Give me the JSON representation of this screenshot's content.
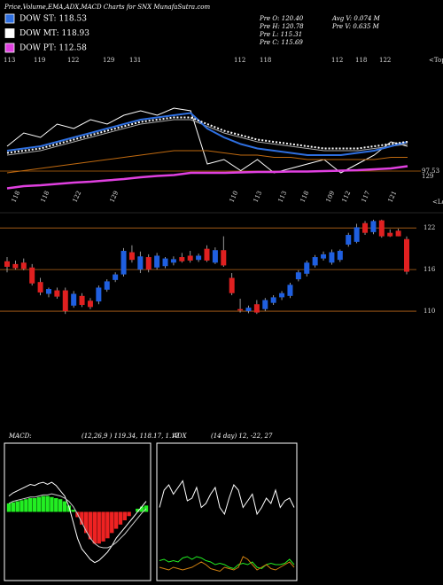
{
  "header": {
    "stats": [
      "Pre  O: 120.40",
      "Pre  H: 120.78",
      "Pre  L: 115.31",
      "Pre  C: 115.69",
      "Avg V: 0.074  M",
      "Pre  V: 0.635  M"
    ]
  },
  "chart_data": [
    {
      "type": "line",
      "title": "Price,Volume,EMA,ADX,MACD Charts for SNX  MunafaSutra.com",
      "top_labels": [
        "113",
        "119",
        "122",
        "129",
        "131",
        "112",
        "118",
        "112",
        "118",
        "122",
        "<Tops"
      ],
      "low_labels": [
        "118",
        "118",
        "122",
        "129",
        "110",
        "113",
        "113",
        "118",
        "109",
        "112",
        "117",
        "121",
        "<Lows"
      ],
      "annotations": [
        "97.53",
        "129"
      ],
      "ylim": [
        104,
        127
      ],
      "series": [
        {
          "color": "#ffffff",
          "values": [
            114,
            117,
            116,
            119,
            118,
            120,
            119,
            121,
            122,
            121,
            122.6,
            122,
            110,
            111,
            108.5,
            111,
            108,
            109,
            110,
            111,
            108,
            110,
            112,
            115,
            114
          ]
        },
        {
          "color": "#aaaaaa",
          "values": [
            112,
            112.5,
            113,
            114,
            115,
            116,
            117,
            118,
            119,
            119.5,
            120,
            120,
            118.5,
            117,
            116,
            115,
            114.5,
            114,
            113.5,
            113,
            113,
            113,
            113.5,
            114,
            114.5
          ]
        },
        {
          "color": "#c06a10",
          "values": [
            108,
            108.5,
            109,
            109.5,
            110,
            110.5,
            111,
            111.5,
            112,
            112.5,
            113,
            113,
            113,
            112.5,
            112,
            112,
            111.5,
            111.5,
            111,
            111,
            111,
            111,
            111,
            111.5,
            111.5
          ]
        },
        {
          "name": "DOW ST: 118.53",
          "color": "#2e6fe0",
          "values": [
            113,
            113.5,
            114,
            115,
            116,
            117,
            118,
            119,
            120,
            120.5,
            121,
            121.5,
            118,
            116,
            114.5,
            113.5,
            113,
            112.5,
            112,
            112,
            112,
            112.5,
            113,
            114,
            115
          ]
        },
        {
          "name": "DOW MT: 118.93",
          "color": "#ffffff",
          "values": [
            112.5,
            113,
            113.5,
            114.5,
            115.5,
            116.5,
            117.5,
            118.5,
            119.5,
            120,
            120.5,
            120.5,
            119,
            117.5,
            116.5,
            115.5,
            115,
            114.5,
            114,
            113.5,
            113.5,
            113.5,
            114,
            114.5,
            115
          ]
        },
        {
          "name": "DOW PT: 112.58",
          "color": "#e040e0",
          "values": [
            104.5,
            105,
            105.2,
            105.5,
            105.8,
            106,
            106.3,
            106.6,
            107,
            107.3,
            107.5,
            108,
            108,
            108,
            108.1,
            108.2,
            108.2,
            108.3,
            108.3,
            108.4,
            108.5,
            108.6,
            108.8,
            109,
            109.5
          ]
        }
      ]
    },
    {
      "type": "candlestick",
      "up_color": "#1f5fe0",
      "down_color": "#e02020",
      "grid": true,
      "grid_color": "#b8661a",
      "ylim": [
        108.6,
        124.2
      ],
      "yticks": [
        110,
        116,
        122
      ],
      "open": [
        117.2,
        116.8,
        117.0,
        116.3,
        114.2,
        112.5,
        113.0,
        113.0,
        110.8,
        112.2,
        111.5,
        111.4,
        113.1,
        114.5,
        115.3,
        118.5,
        116.0,
        117.8,
        116.3,
        116.5,
        117.0,
        117.8,
        118.0,
        117.4,
        119.0,
        117.0,
        118.8,
        114.8,
        110.3,
        110.0,
        111.0,
        110.3,
        111.2,
        112.0,
        112.2,
        114.6,
        115.4,
        116.6,
        117.6,
        117.0,
        117.4,
        119.6,
        120.0,
        122.7,
        121.4,
        123.1,
        121.3,
        121.6,
        120.4
      ],
      "high": [
        117.8,
        117.3,
        117.6,
        116.8,
        114.8,
        113.4,
        113.4,
        113.4,
        112.9,
        112.6,
        111.9,
        113.7,
        114.6,
        115.6,
        119.1,
        119.5,
        118.6,
        118.2,
        118.4,
        117.8,
        117.9,
        118.4,
        118.7,
        118.3,
        119.5,
        119.2,
        120.8,
        115.5,
        111.8,
        110.8,
        111.6,
        111.9,
        112.3,
        112.9,
        114.1,
        115.9,
        117.3,
        118.1,
        118.6,
        118.9,
        118.9,
        121.3,
        122.6,
        123.0,
        123.2,
        123.2,
        121.8,
        121.9,
        120.78
      ],
      "low": [
        115.6,
        116.0,
        115.9,
        113.7,
        112.3,
        112.0,
        111.8,
        109.6,
        110.5,
        110.6,
        110.3,
        111.0,
        112.8,
        114.2,
        115.0,
        117.0,
        115.5,
        115.6,
        116.0,
        116.2,
        116.6,
        117.0,
        117.0,
        117.1,
        117.1,
        116.8,
        116.4,
        112.3,
        109.8,
        109.7,
        109.6,
        110.0,
        110.9,
        111.6,
        111.9,
        114.3,
        115.0,
        116.3,
        117.3,
        116.7,
        117.1,
        119.3,
        119.8,
        121.0,
        121.1,
        120.6,
        120.7,
        120.8,
        115.31
      ],
      "close": [
        116.4,
        116.2,
        116.1,
        114.0,
        112.7,
        113.2,
        112.1,
        110.0,
        112.5,
        110.9,
        110.6,
        113.4,
        114.3,
        115.3,
        118.7,
        117.4,
        117.9,
        116.0,
        118.0,
        117.6,
        117.5,
        117.2,
        117.3,
        118.0,
        117.3,
        118.8,
        116.6,
        112.6,
        110.1,
        110.5,
        109.8,
        111.6,
        112.0,
        112.6,
        113.8,
        115.6,
        117.0,
        117.8,
        118.2,
        118.5,
        118.7,
        121.0,
        122.1,
        121.3,
        123.0,
        120.8,
        120.8,
        120.8,
        115.69
      ]
    },
    {
      "type": "macd",
      "title": "MACD:",
      "subtitle": "(12,26,9 ) 119.34, 118.17, 1.17",
      "pos_color": "#22ee22",
      "neg_color": "#ee2222",
      "ylim": [
        -6.5,
        6.5
      ],
      "histogram": [
        0.8,
        0.9,
        1,
        1.1,
        1.2,
        1.3,
        1.3,
        1.4,
        1.5,
        1.5,
        1.4,
        1.3,
        1.2,
        1,
        0.6,
        0.2,
        -0.5,
        -1.2,
        -2,
        -2.6,
        -3,
        -3,
        -2.8,
        -2.5,
        -2,
        -1.6,
        -1.2,
        -0.8,
        -0.4,
        0,
        0.3,
        0.5,
        0.6
      ],
      "series": [
        {
          "color": "#ffffff",
          "values": [
            1.5,
            1.8,
            2,
            2.2,
            2.4,
            2.6,
            2.5,
            2.7,
            2.8,
            2.6,
            2.8,
            2.5,
            2,
            1.5,
            0.5,
            -1,
            -2.5,
            -3.5,
            -4,
            -4.5,
            -4.8,
            -4.6,
            -4.2,
            -3.8,
            -3.2,
            -2.5,
            -2,
            -1.5,
            -1,
            -0.5,
            0,
            0.5,
            1.0
          ]
        },
        {
          "color": "#cccccc",
          "values": [
            0.8,
            1,
            1.1,
            1.2,
            1.3,
            1.4,
            1.4,
            1.5,
            1.6,
            1.6,
            1.7,
            1.6,
            1.5,
            1.3,
            1,
            0.5,
            -0.2,
            -1,
            -1.8,
            -2.5,
            -3,
            -3.3,
            -3.4,
            -3.4,
            -3.2,
            -2.9,
            -2.5,
            -2.1,
            -1.6,
            -1.1,
            -0.6,
            -0.1,
            0.3
          ]
        }
      ]
    },
    {
      "type": "line",
      "title": "ADX",
      "subtitle": "(14 day) 12, -22, 27",
      "ylim": [
        0,
        100
      ],
      "series": [
        {
          "color": "#ffffff",
          "values": [
            55,
            68,
            72,
            65,
            70,
            75,
            60,
            62,
            70,
            55,
            58,
            65,
            70,
            55,
            50,
            62,
            72,
            68,
            55,
            60,
            65,
            50,
            55,
            62,
            58,
            68,
            55,
            60,
            62,
            55
          ]
        },
        {
          "color": "#22ee22",
          "values": [
            15,
            16,
            14,
            15,
            14,
            17,
            18,
            16,
            18,
            17,
            15,
            14,
            12,
            13,
            12,
            10,
            9,
            12,
            13,
            12,
            14,
            10,
            9,
            12,
            13,
            12,
            12,
            13,
            16,
            12
          ]
        },
        {
          "color": "#d08010",
          "values": [
            10,
            9,
            8,
            10,
            9,
            8,
            9,
            10,
            12,
            14,
            12,
            9,
            8,
            7,
            10,
            9,
            8,
            10,
            18,
            16,
            12,
            8,
            10,
            12,
            9,
            8,
            10,
            12,
            14,
            10
          ]
        }
      ]
    }
  ]
}
